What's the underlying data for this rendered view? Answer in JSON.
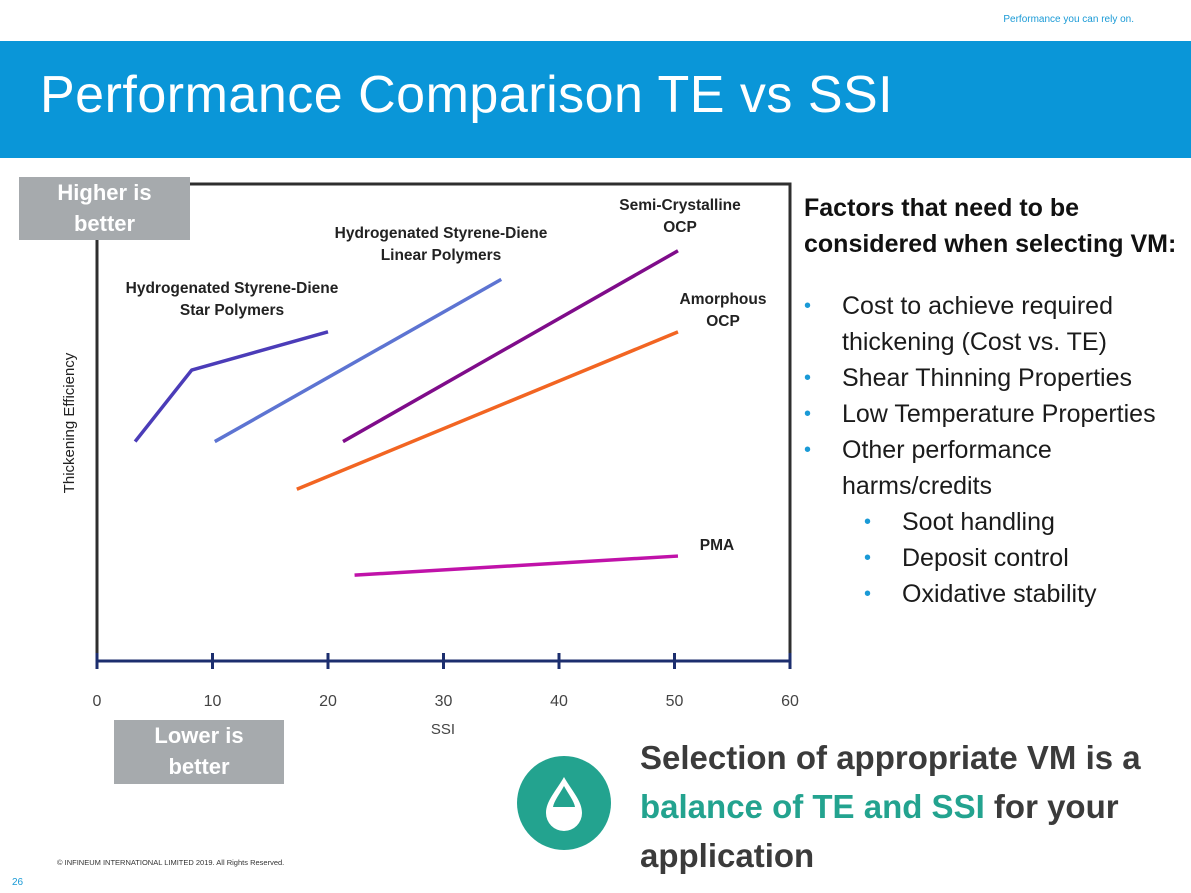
{
  "header": {
    "tagline": "Performance you can rely on.",
    "title": "Performance Comparison TE vs SSI"
  },
  "annotations": {
    "higher_is_better": "Higher is better",
    "lower_is_better": "Lower is better"
  },
  "chart_data": {
    "type": "line",
    "xlabel": "SSI",
    "ylabel": "Thickening Efficiency",
    "xlim": [
      0,
      60
    ],
    "x_ticks": [
      0,
      10,
      20,
      30,
      40,
      50,
      60
    ],
    "y_ticks_shown": false,
    "grid": false,
    "series": [
      {
        "name": "Hydrogenated Styrene-Diene Star Polymers",
        "color": "#4b3cb8",
        "points": [
          [
            3.3,
            0.46
          ],
          [
            8.2,
            0.61
          ],
          [
            20.0,
            0.69
          ]
        ]
      },
      {
        "name": "Hydrogenated Styrene-Diene Linear Polymers",
        "color": "#5d74d2",
        "points": [
          [
            10.2,
            0.46
          ],
          [
            35.0,
            0.8
          ]
        ]
      },
      {
        "name": "Semi-Crystalline OCP",
        "color": "#7f0c8a",
        "points": [
          [
            21.3,
            0.46
          ],
          [
            50.3,
            0.86
          ]
        ]
      },
      {
        "name": "Amorphous OCP",
        "color": "#f26522",
        "points": [
          [
            17.3,
            0.36
          ],
          [
            50.3,
            0.69
          ]
        ]
      },
      {
        "name": "PMA",
        "color": "#c012a9",
        "points": [
          [
            22.3,
            0.18
          ],
          [
            50.3,
            0.22
          ]
        ]
      }
    ]
  },
  "chart_labels": [
    {
      "series": 0,
      "lines": [
        "Hydrogenated Styrene-Diene",
        "Star Polymers"
      ]
    },
    {
      "series": 1,
      "lines": [
        "Hydrogenated Styrene-Diene",
        "Linear Polymers"
      ]
    },
    {
      "series": 2,
      "lines": [
        "Semi-Crystalline",
        "OCP"
      ]
    },
    {
      "series": 3,
      "lines": [
        "Amorphous",
        "OCP"
      ]
    },
    {
      "series": 4,
      "lines": [
        "PMA"
      ]
    }
  ],
  "factors": {
    "heading_line1": "Factors that need to be",
    "heading_line2": "considered when selecting VM:",
    "items": [
      {
        "text": "Cost to achieve required",
        "level": 1
      },
      {
        "text": "thickening (Cost vs. TE)",
        "level": 1,
        "continuation": true
      },
      {
        "text": "Shear Thinning Properties",
        "level": 1
      },
      {
        "text": "Low Temperature Properties",
        "level": 1
      },
      {
        "text": "Other performance",
        "level": 1
      },
      {
        "text": "harms/credits",
        "level": 1,
        "continuation": true
      },
      {
        "text": "Soot handling",
        "level": 2
      },
      {
        "text": "Deposit control",
        "level": 2
      },
      {
        "text": "Oxidative stability",
        "level": 2
      }
    ]
  },
  "callout": {
    "part1": "Selection of appropriate VM is a ",
    "highlight": "balance of TE and SSI",
    "part2": " for your application",
    "icon": "drop-icon",
    "accent_color": "#23a38f"
  },
  "footer": {
    "copyright": "© INFINEUM INTERNATIONAL LIMITED 2019. All Rights Reserved.",
    "page_number": "26"
  }
}
